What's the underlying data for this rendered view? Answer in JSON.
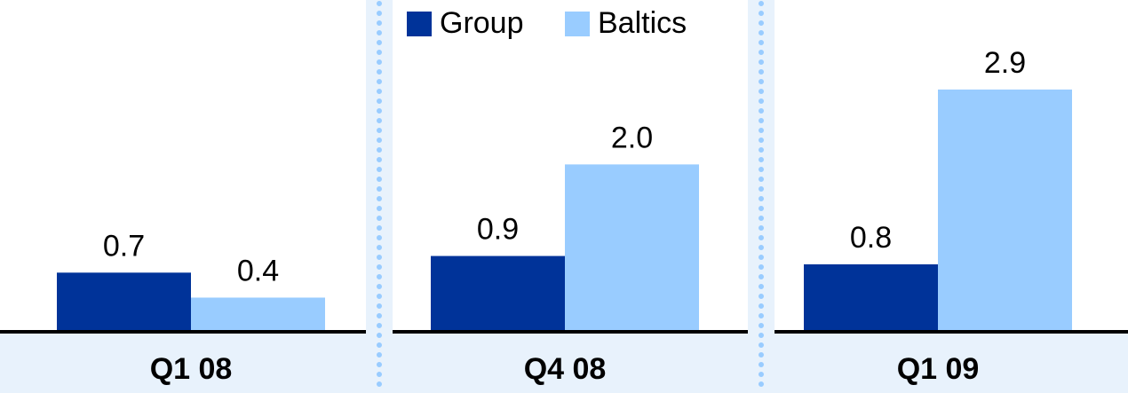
{
  "chart_data": {
    "type": "bar",
    "categories": [
      "Q1 08",
      "Q4 08",
      "Q1 09"
    ],
    "series": [
      {
        "name": "Group",
        "color": "#003399",
        "values": [
          0.7,
          0.9,
          0.8
        ]
      },
      {
        "name": "Baltics",
        "color": "#99ccff",
        "values": [
          0.4,
          2,
          2.9
        ],
        "value_labels": [
          "0.4",
          "2.0",
          "2.9"
        ]
      }
    ],
    "ylim": [
      0,
      3.4
    ],
    "legend": "top"
  }
}
